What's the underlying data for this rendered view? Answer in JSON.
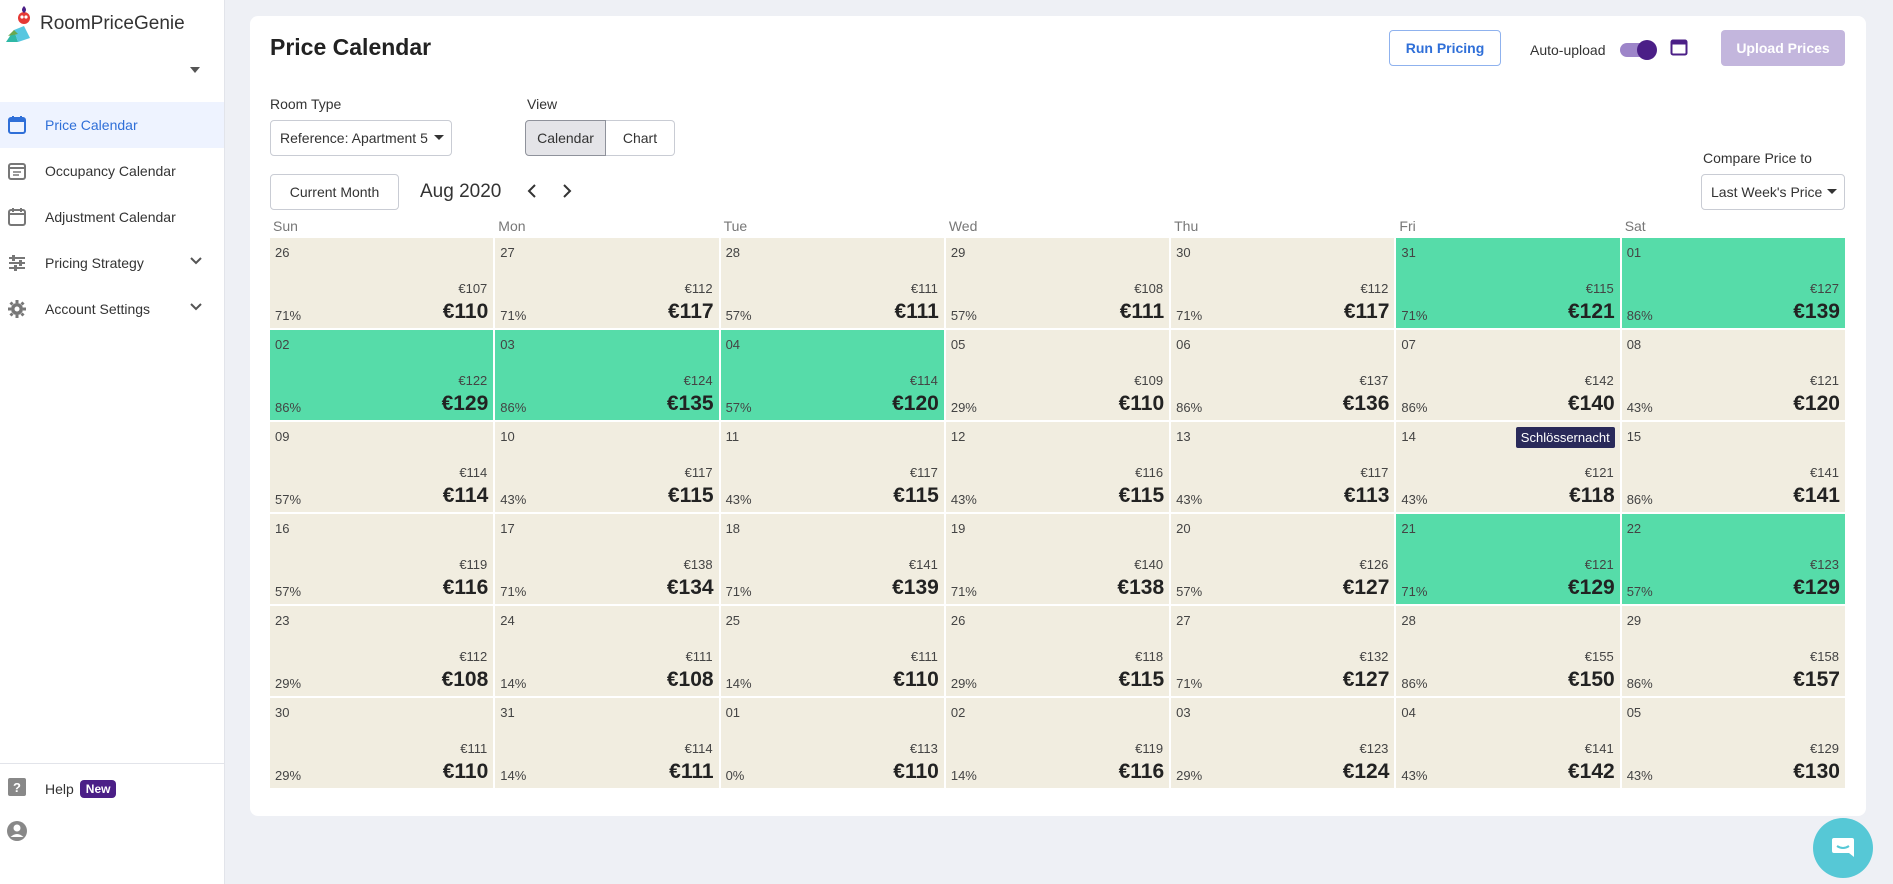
{
  "app": {
    "brand": "RoomPriceGenie"
  },
  "sidebar": {
    "items": [
      {
        "label": "Price Calendar",
        "icon": "calendar-icon",
        "active": true
      },
      {
        "label": "Occupancy Calendar",
        "icon": "occupancy-calendar-icon"
      },
      {
        "label": "Adjustment Calendar",
        "icon": "adjustment-calendar-icon"
      },
      {
        "label": "Pricing Strategy",
        "icon": "sliders-icon",
        "expandable": true
      },
      {
        "label": "Account Settings",
        "icon": "gear-icon",
        "expandable": true
      }
    ],
    "help": {
      "label": "Help",
      "badge": "New"
    }
  },
  "header": {
    "title": "Price Calendar",
    "run_pricing": "Run Pricing",
    "auto_upload_label": "Auto-upload",
    "auto_upload_on": true,
    "upload_prices": "Upload Prices"
  },
  "filters": {
    "room_type_label": "Room Type",
    "room_type_value": "Reference: Apartment 5",
    "view_label": "View",
    "view_options": [
      "Calendar",
      "Chart"
    ],
    "view_selected": "Calendar",
    "compare_label": "Compare Price to",
    "compare_value": "Last Week's Price"
  },
  "calendar_nav": {
    "current_month": "Current Month",
    "month": "Aug 2020"
  },
  "colors": {
    "accent": "#2f6fd8",
    "brand": "#4b1f87",
    "highlight": "#56dca9",
    "cell": "#f1ede0"
  },
  "calendar": {
    "weekdays": [
      "Sun",
      "Mon",
      "Tue",
      "Wed",
      "Thu",
      "Fri",
      "Sat"
    ],
    "weeks": [
      [
        {
          "day": "26",
          "old": "€107",
          "occ": "71%",
          "price": "€110"
        },
        {
          "day": "27",
          "old": "€112",
          "occ": "71%",
          "price": "€117"
        },
        {
          "day": "28",
          "old": "€111",
          "occ": "57%",
          "price": "€111"
        },
        {
          "day": "29",
          "old": "€108",
          "occ": "57%",
          "price": "€111"
        },
        {
          "day": "30",
          "old": "€112",
          "occ": "71%",
          "price": "€117"
        },
        {
          "day": "31",
          "old": "€115",
          "occ": "71%",
          "price": "€121",
          "hl": true
        },
        {
          "day": "01",
          "old": "€127",
          "occ": "86%",
          "price": "€139",
          "hl": true
        }
      ],
      [
        {
          "day": "02",
          "old": "€122",
          "occ": "86%",
          "price": "€129",
          "hl": true
        },
        {
          "day": "03",
          "old": "€124",
          "occ": "86%",
          "price": "€135",
          "hl": true
        },
        {
          "day": "04",
          "old": "€114",
          "occ": "57%",
          "price": "€120",
          "hl": true
        },
        {
          "day": "05",
          "old": "€109",
          "occ": "29%",
          "price": "€110"
        },
        {
          "day": "06",
          "old": "€137",
          "occ": "86%",
          "price": "€136"
        },
        {
          "day": "07",
          "old": "€142",
          "occ": "86%",
          "price": "€140"
        },
        {
          "day": "08",
          "old": "€121",
          "occ": "43%",
          "price": "€120"
        }
      ],
      [
        {
          "day": "09",
          "old": "€114",
          "occ": "57%",
          "price": "€114"
        },
        {
          "day": "10",
          "old": "€117",
          "occ": "43%",
          "price": "€115"
        },
        {
          "day": "11",
          "old": "€117",
          "occ": "43%",
          "price": "€115"
        },
        {
          "day": "12",
          "old": "€116",
          "occ": "43%",
          "price": "€115"
        },
        {
          "day": "13",
          "old": "€117",
          "occ": "43%",
          "price": "€113"
        },
        {
          "day": "14",
          "old": "€121",
          "occ": "43%",
          "price": "€118",
          "event": "Schlössernacht"
        },
        {
          "day": "15",
          "old": "€141",
          "occ": "86%",
          "price": "€141"
        }
      ],
      [
        {
          "day": "16",
          "old": "€119",
          "occ": "57%",
          "price": "€116"
        },
        {
          "day": "17",
          "old": "€138",
          "occ": "71%",
          "price": "€134"
        },
        {
          "day": "18",
          "old": "€141",
          "occ": "71%",
          "price": "€139"
        },
        {
          "day": "19",
          "old": "€140",
          "occ": "71%",
          "price": "€138"
        },
        {
          "day": "20",
          "old": "€126",
          "occ": "57%",
          "price": "€127"
        },
        {
          "day": "21",
          "old": "€121",
          "occ": "71%",
          "price": "€129",
          "hl": true
        },
        {
          "day": "22",
          "old": "€123",
          "occ": "57%",
          "price": "€129",
          "hl": true
        }
      ],
      [
        {
          "day": "23",
          "old": "€112",
          "occ": "29%",
          "price": "€108"
        },
        {
          "day": "24",
          "old": "€111",
          "occ": "14%",
          "price": "€108"
        },
        {
          "day": "25",
          "old": "€111",
          "occ": "14%",
          "price": "€110"
        },
        {
          "day": "26",
          "old": "€118",
          "occ": "29%",
          "price": "€115"
        },
        {
          "day": "27",
          "old": "€132",
          "occ": "71%",
          "price": "€127"
        },
        {
          "day": "28",
          "old": "€155",
          "occ": "86%",
          "price": "€150"
        },
        {
          "day": "29",
          "old": "€158",
          "occ": "86%",
          "price": "€157"
        }
      ],
      [
        {
          "day": "30",
          "old": "€111",
          "occ": "29%",
          "price": "€110"
        },
        {
          "day": "31",
          "old": "€114",
          "occ": "14%",
          "price": "€111"
        },
        {
          "day": "01",
          "old": "€113",
          "occ": "0%",
          "price": "€110"
        },
        {
          "day": "02",
          "old": "€119",
          "occ": "14%",
          "price": "€116"
        },
        {
          "day": "03",
          "old": "€123",
          "occ": "29%",
          "price": "€124"
        },
        {
          "day": "04",
          "old": "€141",
          "occ": "43%",
          "price": "€142"
        },
        {
          "day": "05",
          "old": "€129",
          "occ": "43%",
          "price": "€130"
        }
      ]
    ]
  }
}
